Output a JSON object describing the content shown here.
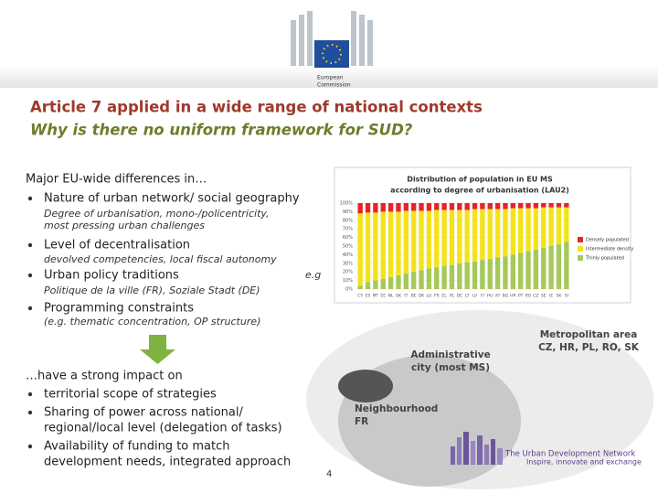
{
  "header": {
    "logo_text": [
      "European",
      "Commission"
    ]
  },
  "title": {
    "line1": "Article 7 applied in a wide range of national contexts",
    "line2": "Why is there no uniform framework for SUD?"
  },
  "differences": {
    "heading": "Major EU-wide differences in…",
    "items": [
      {
        "text": "Nature of urban network/ social geography",
        "detail": [
          "Degree of urbanisation, mono-/policentricity,",
          "most pressing urban challenges"
        ]
      },
      {
        "text": "Level of decentralisation",
        "detail": [
          "devolved competencies, local fiscal autonomy"
        ]
      },
      {
        "text": "Urban policy traditions",
        "note": "e.g",
        "detail": [
          "Politique de la ville (FR), Soziale Stadt (DE)"
        ]
      },
      {
        "text": "Programming constraints",
        "detail": [
          "(e.g. thematic concentration, OP structure)"
        ]
      }
    ]
  },
  "impact": {
    "heading": "…have a strong impact on",
    "items": [
      [
        "territorial scope of strategies"
      ],
      [
        "Sharing of power across national/",
        "regional/local level (delegation of tasks)"
      ],
      [
        "Availability of funding to match",
        "development needs, integrated approach"
      ]
    ]
  },
  "diagram": {
    "metropolitan": [
      "Metropolitan area",
      "CZ, HR, PL, RO, SK"
    ],
    "administrative": [
      "Administrative",
      "city (most MS)"
    ],
    "neighbourhood": [
      "Neighbourhood",
      "FR"
    ]
  },
  "footer": {
    "network": "The Urban Development Network",
    "tagline": "Inspire, innovate and exchange",
    "page": "4"
  },
  "chart_data": {
    "type": "stacked-bar",
    "title": [
      "Distribution of population in EU MS",
      "according to degree of urbanisation (LAU2)"
    ],
    "categories": [
      "CY",
      "ES",
      "MT",
      "EE",
      "NL",
      "UK",
      "IT",
      "BE",
      "DK",
      "LU",
      "FR",
      "EL",
      "PL",
      "DE",
      "LT",
      "LV",
      "FI",
      "HU",
      "AT",
      "BG",
      "HR",
      "PT",
      "RO",
      "CZ",
      "SE",
      "IE",
      "SK",
      "SI"
    ],
    "series": [
      {
        "name": "Thinly populated",
        "color": "#a6c95a",
        "values": [
          4,
          8,
          10,
          12,
          14,
          16,
          18,
          20,
          22,
          24,
          25,
          27,
          28,
          30,
          31,
          32,
          34,
          35,
          37,
          38,
          40,
          42,
          44,
          46,
          48,
          50,
          52,
          55
        ]
      },
      {
        "name": "Intermediate density",
        "color": "#f4e31b",
        "values": [
          84,
          81,
          79,
          78,
          76,
          74,
          73,
          71,
          69,
          67,
          67,
          65,
          64,
          62,
          61,
          61,
          59,
          58,
          56,
          55,
          54,
          52,
          50,
          48,
          47,
          45,
          43,
          40
        ]
      },
      {
        "name": "Densely populated",
        "color": "#e8232a",
        "values": [
          12,
          11,
          11,
          10,
          10,
          10,
          9,
          9,
          9,
          9,
          8,
          8,
          8,
          8,
          8,
          7,
          7,
          7,
          7,
          7,
          6,
          6,
          6,
          6,
          5,
          5,
          5,
          5
        ]
      }
    ],
    "legend_order": [
      2,
      1,
      0
    ],
    "ylim": [
      0,
      100
    ],
    "yticks": [
      {
        "value": 0,
        "label": "0%"
      },
      {
        "value": 10,
        "label": "10%"
      },
      {
        "value": 20,
        "label": "20%"
      },
      {
        "value": 30,
        "label": "30%"
      },
      {
        "value": 40,
        "label": "40%"
      },
      {
        "value": 50,
        "label": "50%"
      },
      {
        "value": 60,
        "label": "60%"
      },
      {
        "value": 70,
        "label": "70%"
      },
      {
        "value": 80,
        "label": "80%"
      },
      {
        "value": 90,
        "label": "90%"
      },
      {
        "value": 100,
        "label": "100%"
      }
    ],
    "grid": true
  }
}
